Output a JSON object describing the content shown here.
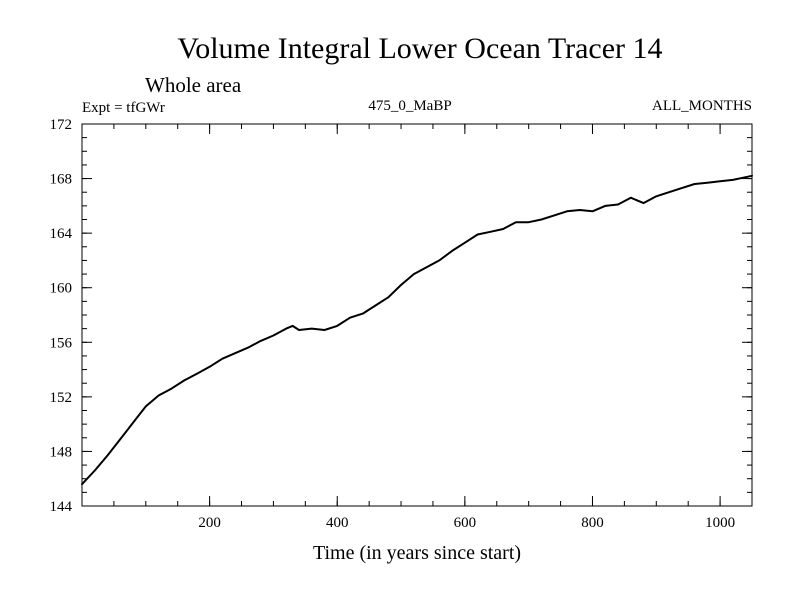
{
  "chart_data": {
    "type": "line",
    "title": "Volume Integral Lower Ocean Tracer 14",
    "subtitle": "Whole area",
    "left_label": "Expt = tfGWr",
    "center_label": "475_0_MaBP",
    "right_label": "ALL_MONTHS",
    "xlabel": "Time (in years since start)",
    "ylabel": "",
    "xlim": [
      0,
      1050
    ],
    "ylim": [
      144,
      172
    ],
    "xticks": [
      200,
      400,
      600,
      800,
      1000
    ],
    "yticks": [
      144,
      148,
      152,
      156,
      160,
      164,
      168,
      172
    ],
    "x_minor_step": 50,
    "y_minor_step": 1,
    "grid": false,
    "series": [
      {
        "name": "Lower Ocean Tracer 14",
        "color": "#000000",
        "x": [
          0,
          20,
          40,
          60,
          80,
          100,
          120,
          140,
          160,
          180,
          200,
          220,
          240,
          260,
          280,
          300,
          320,
          330,
          340,
          360,
          380,
          400,
          420,
          440,
          460,
          480,
          500,
          520,
          540,
          560,
          580,
          600,
          620,
          640,
          660,
          680,
          700,
          720,
          740,
          760,
          780,
          800,
          820,
          840,
          860,
          880,
          900,
          920,
          940,
          960,
          980,
          1000,
          1020,
          1040,
          1050
        ],
        "y": [
          145.6,
          146.6,
          147.7,
          148.9,
          150.1,
          151.3,
          152.1,
          152.6,
          153.2,
          153.7,
          154.2,
          154.8,
          155.2,
          155.6,
          156.1,
          156.5,
          157.0,
          157.2,
          156.9,
          157.0,
          156.9,
          157.2,
          157.8,
          158.1,
          158.7,
          159.3,
          160.2,
          161.0,
          161.5,
          162.0,
          162.7,
          163.3,
          163.9,
          164.1,
          164.3,
          164.8,
          164.8,
          165.0,
          165.3,
          165.6,
          165.7,
          165.6,
          166.0,
          166.1,
          166.6,
          166.2,
          166.7,
          167.0,
          167.3,
          167.6,
          167.7,
          167.8,
          167.9,
          168.1,
          168.2
        ]
      }
    ]
  }
}
